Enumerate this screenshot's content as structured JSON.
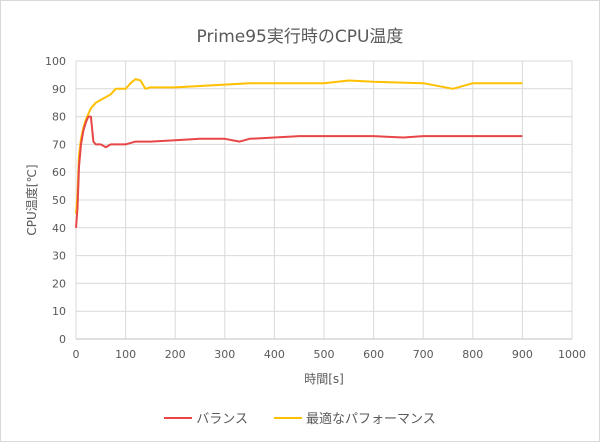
{
  "chart": {
    "title": "Prime95実行時のCPU温度",
    "xlabel": "時間[s]",
    "ylabel": "CPU温度[℃]",
    "legend": [
      {
        "name": "バランス",
        "color": "#e84646"
      },
      {
        "name": "最適なパフォーマンス",
        "color": "#ffc000"
      }
    ]
  },
  "chart_data": {
    "type": "line",
    "title": "Prime95実行時のCPU温度",
    "xlabel": "時間[s]",
    "ylabel": "CPU温度[℃]",
    "xlim": [
      0,
      1000
    ],
    "ylim": [
      0,
      100
    ],
    "xticks": [
      0,
      100,
      200,
      300,
      400,
      500,
      600,
      700,
      800,
      900,
      1000
    ],
    "yticks": [
      0,
      10,
      20,
      30,
      40,
      50,
      60,
      70,
      80,
      90,
      100
    ],
    "grid": true,
    "legend_position": "bottom",
    "series": [
      {
        "name": "バランス",
        "color": "#e84646",
        "x": [
          0,
          3,
          6,
          10,
          15,
          20,
          25,
          30,
          35,
          40,
          50,
          60,
          70,
          80,
          100,
          120,
          140,
          150,
          200,
          250,
          300,
          330,
          350,
          400,
          450,
          500,
          600,
          660,
          700,
          800,
          900
        ],
        "values": [
          40,
          47,
          62,
          70,
          75,
          78,
          80,
          80,
          71,
          70,
          70,
          69,
          70,
          70,
          70,
          71,
          71,
          71,
          71.5,
          72,
          72,
          71,
          72,
          72.5,
          73,
          73,
          73,
          72.5,
          73,
          73,
          73
        ]
      },
      {
        "name": "最適なパフォーマンス",
        "color": "#ffc000",
        "x": [
          0,
          3,
          6,
          10,
          15,
          20,
          25,
          30,
          40,
          50,
          60,
          70,
          80,
          100,
          110,
          120,
          130,
          140,
          150,
          200,
          250,
          300,
          350,
          400,
          450,
          500,
          550,
          600,
          700,
          760,
          800,
          900
        ],
        "values": [
          45,
          52,
          66,
          72,
          76,
          79,
          81,
          83,
          85,
          86,
          87,
          88,
          90,
          90,
          92,
          93.5,
          93,
          90,
          90.5,
          90.5,
          91,
          91.5,
          92,
          92,
          92,
          92,
          93,
          92.5,
          92,
          90,
          92,
          92
        ]
      }
    ]
  }
}
